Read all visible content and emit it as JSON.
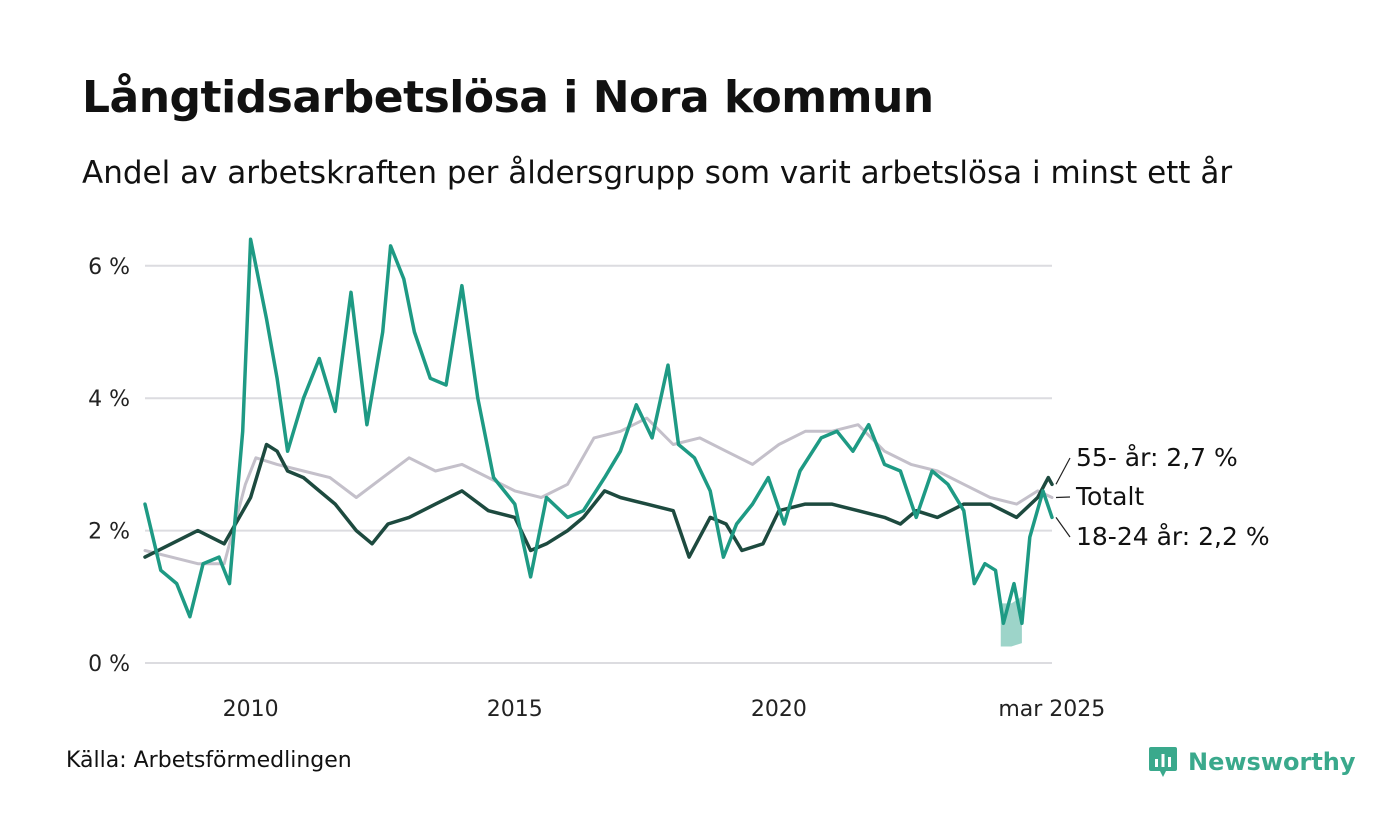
{
  "title": "Långtidsarbetslösa i Nora kommun",
  "subtitle": "Andel av arbetskraften per åldersgrupp som varit arbetslösa i minst ett år",
  "source": "Källa: Arbetsförmedlingen",
  "brand": {
    "name": "Newsworthy",
    "icon": "newsworthy-logo-icon",
    "color": "#3aa98c"
  },
  "chart_data": {
    "type": "line",
    "y_ticks": [
      "0 %",
      "2 %",
      "4 %",
      "6 %"
    ],
    "x_ticks": [
      "2010",
      "2015",
      "2020",
      "mar 2025"
    ],
    "ylim": [
      0,
      6.8
    ],
    "grid": "horizontal",
    "series": [
      {
        "name": "Totalt",
        "label": "Totalt",
        "color": "#c4c0ca",
        "points": [
          [
            2008.0,
            1.7
          ],
          [
            2008.5,
            1.6
          ],
          [
            2009.0,
            1.5
          ],
          [
            2009.5,
            1.5
          ],
          [
            2009.9,
            2.7
          ],
          [
            2010.1,
            3.1
          ],
          [
            2010.5,
            3.0
          ],
          [
            2011.0,
            2.9
          ],
          [
            2011.5,
            2.8
          ],
          [
            2012.0,
            2.5
          ],
          [
            2012.5,
            2.8
          ],
          [
            2013.0,
            3.1
          ],
          [
            2013.5,
            2.9
          ],
          [
            2014.0,
            3.0
          ],
          [
            2014.5,
            2.8
          ],
          [
            2015.0,
            2.6
          ],
          [
            2015.5,
            2.5
          ],
          [
            2016.0,
            2.7
          ],
          [
            2016.5,
            3.4
          ],
          [
            2017.0,
            3.5
          ],
          [
            2017.5,
            3.7
          ],
          [
            2018.0,
            3.3
          ],
          [
            2018.5,
            3.4
          ],
          [
            2019.0,
            3.2
          ],
          [
            2019.5,
            3.0
          ],
          [
            2020.0,
            3.3
          ],
          [
            2020.5,
            3.5
          ],
          [
            2021.0,
            3.5
          ],
          [
            2021.5,
            3.6
          ],
          [
            2022.0,
            3.2
          ],
          [
            2022.5,
            3.0
          ],
          [
            2023.0,
            2.9
          ],
          [
            2023.5,
            2.7
          ],
          [
            2024.0,
            2.5
          ],
          [
            2024.5,
            2.4
          ],
          [
            2024.9,
            2.6
          ],
          [
            2025.17,
            2.5
          ]
        ]
      },
      {
        "name": "55- år",
        "label": "55- år: 2,7 %",
        "color": "#1d4a3f",
        "points": [
          [
            2008.0,
            1.6
          ],
          [
            2008.5,
            1.8
          ],
          [
            2009.0,
            2.0
          ],
          [
            2009.5,
            1.8
          ],
          [
            2010.0,
            2.5
          ],
          [
            2010.3,
            3.3
          ],
          [
            2010.5,
            3.2
          ],
          [
            2010.7,
            2.9
          ],
          [
            2011.0,
            2.8
          ],
          [
            2011.3,
            2.6
          ],
          [
            2011.6,
            2.4
          ],
          [
            2012.0,
            2.0
          ],
          [
            2012.3,
            1.8
          ],
          [
            2012.6,
            2.1
          ],
          [
            2013.0,
            2.2
          ],
          [
            2013.5,
            2.4
          ],
          [
            2014.0,
            2.6
          ],
          [
            2014.5,
            2.3
          ],
          [
            2015.0,
            2.2
          ],
          [
            2015.3,
            1.7
          ],
          [
            2015.6,
            1.8
          ],
          [
            2016.0,
            2.0
          ],
          [
            2016.3,
            2.2
          ],
          [
            2016.7,
            2.6
          ],
          [
            2017.0,
            2.5
          ],
          [
            2017.5,
            2.4
          ],
          [
            2018.0,
            2.3
          ],
          [
            2018.3,
            1.6
          ],
          [
            2018.7,
            2.2
          ],
          [
            2019.0,
            2.1
          ],
          [
            2019.3,
            1.7
          ],
          [
            2019.7,
            1.8
          ],
          [
            2020.0,
            2.3
          ],
          [
            2020.5,
            2.4
          ],
          [
            2021.0,
            2.4
          ],
          [
            2021.5,
            2.3
          ],
          [
            2022.0,
            2.2
          ],
          [
            2022.3,
            2.1
          ],
          [
            2022.6,
            2.3
          ],
          [
            2023.0,
            2.2
          ],
          [
            2023.5,
            2.4
          ],
          [
            2024.0,
            2.4
          ],
          [
            2024.5,
            2.2
          ],
          [
            2024.9,
            2.5
          ],
          [
            2025.1,
            2.8
          ],
          [
            2025.17,
            2.7
          ]
        ]
      },
      {
        "name": "18-24 år",
        "label": "18-24 år: 2,2 %",
        "color": "#1e9a84",
        "points": [
          [
            2008.0,
            2.4
          ],
          [
            2008.3,
            1.4
          ],
          [
            2008.6,
            1.2
          ],
          [
            2008.85,
            0.7
          ],
          [
            2009.1,
            1.5
          ],
          [
            2009.4,
            1.6
          ],
          [
            2009.6,
            1.2
          ],
          [
            2009.85,
            3.5
          ],
          [
            2010.0,
            6.4
          ],
          [
            2010.3,
            5.2
          ],
          [
            2010.5,
            4.3
          ],
          [
            2010.7,
            3.2
          ],
          [
            2011.0,
            4.0
          ],
          [
            2011.3,
            4.6
          ],
          [
            2011.6,
            3.8
          ],
          [
            2011.9,
            5.6
          ],
          [
            2012.2,
            3.6
          ],
          [
            2012.5,
            5.0
          ],
          [
            2012.65,
            6.3
          ],
          [
            2012.9,
            5.8
          ],
          [
            2013.1,
            5.0
          ],
          [
            2013.4,
            4.3
          ],
          [
            2013.7,
            4.2
          ],
          [
            2014.0,
            5.7
          ],
          [
            2014.3,
            4.0
          ],
          [
            2014.6,
            2.8
          ],
          [
            2015.0,
            2.4
          ],
          [
            2015.3,
            1.3
          ],
          [
            2015.6,
            2.5
          ],
          [
            2016.0,
            2.2
          ],
          [
            2016.3,
            2.3
          ],
          [
            2016.7,
            2.8
          ],
          [
            2017.0,
            3.2
          ],
          [
            2017.3,
            3.9
          ],
          [
            2017.6,
            3.4
          ],
          [
            2017.9,
            4.5
          ],
          [
            2018.1,
            3.3
          ],
          [
            2018.4,
            3.1
          ],
          [
            2018.7,
            2.6
          ],
          [
            2018.95,
            1.6
          ],
          [
            2019.2,
            2.1
          ],
          [
            2019.5,
            2.4
          ],
          [
            2019.8,
            2.8
          ],
          [
            2020.1,
            2.1
          ],
          [
            2020.4,
            2.9
          ],
          [
            2020.8,
            3.4
          ],
          [
            2021.1,
            3.5
          ],
          [
            2021.4,
            3.2
          ],
          [
            2021.7,
            3.6
          ],
          [
            2022.0,
            3.0
          ],
          [
            2022.3,
            2.9
          ],
          [
            2022.6,
            2.2
          ],
          [
            2022.9,
            2.9
          ],
          [
            2023.2,
            2.7
          ],
          [
            2023.5,
            2.3
          ],
          [
            2023.7,
            1.2
          ],
          [
            2023.9,
            1.5
          ],
          [
            2024.1,
            1.4
          ],
          [
            2024.25,
            0.6
          ],
          [
            2024.45,
            1.2
          ],
          [
            2024.6,
            0.6
          ],
          [
            2024.75,
            1.9
          ],
          [
            2025.0,
            2.6
          ],
          [
            2025.17,
            2.2
          ]
        ]
      }
    ],
    "uncertainty_band": {
      "series": "18-24 år",
      "color": "#8cccbf",
      "points": [
        [
          2024.2,
          0.25,
          0.9
        ],
        [
          2024.4,
          0.25,
          0.9
        ],
        [
          2024.6,
          0.3,
          1.0
        ]
      ]
    }
  }
}
